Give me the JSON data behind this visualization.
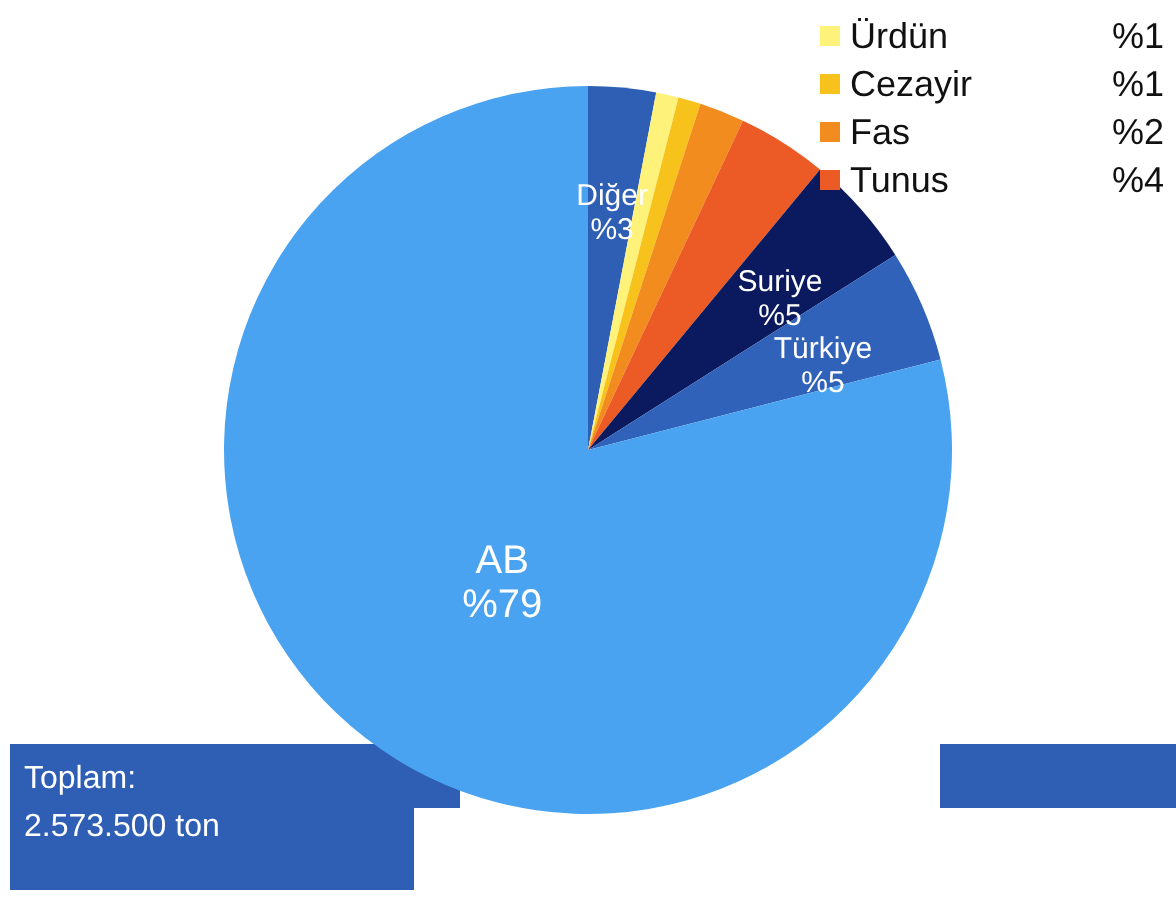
{
  "chart_data": {
    "type": "pie",
    "categories": [
      "Diğer",
      "Ürdün",
      "Cezayir",
      "Fas",
      "Tunus",
      "Suriye",
      "Türkiye",
      "AB"
    ],
    "values": [
      3,
      1,
      1,
      2,
      4,
      5,
      5,
      79
    ],
    "colors": [
      "#2f5fb5",
      "#fff27a",
      "#f7c21c",
      "#f28c1e",
      "#ec5a25",
      "#0b1a5e",
      "#2f62b8",
      "#4aa3f0"
    ],
    "value_labels": [
      "%3",
      "%1",
      "%1",
      "%2",
      "%4",
      "%5",
      "%5",
      "%79"
    ],
    "legend": "top right",
    "annotations": [
      "Toplam:\n2.573.500 ton"
    ]
  }
}
